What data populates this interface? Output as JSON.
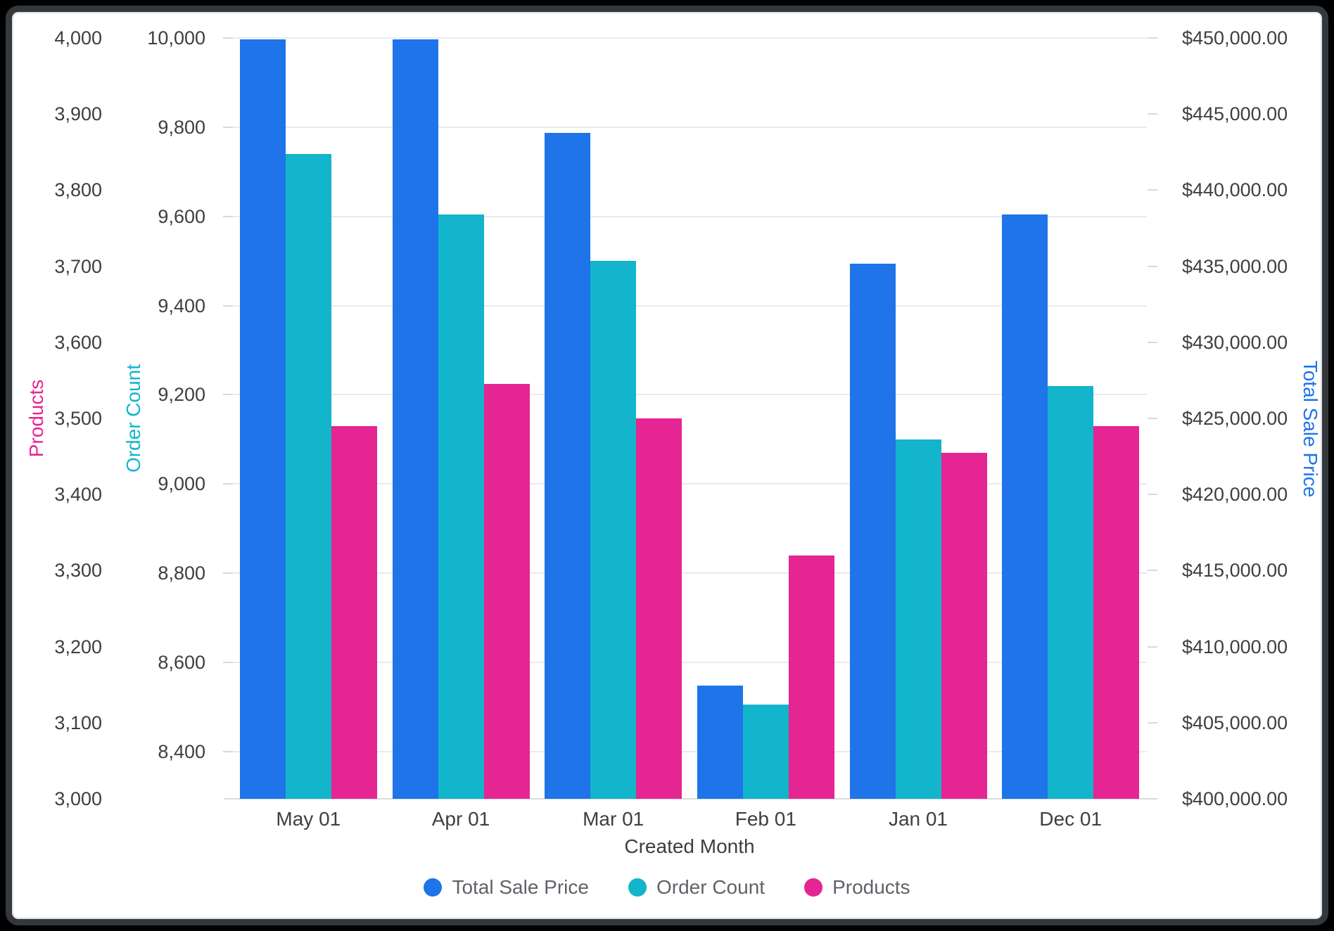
{
  "frame": {
    "background": "#000000",
    "card_border": "#34383c",
    "card_background": "#ffffff"
  },
  "chart_data": {
    "type": "bar",
    "title": "",
    "categories": [
      "May 01",
      "Apr 01",
      "Mar 01",
      "Feb 01",
      "Jan 01",
      "Dec 01"
    ],
    "xlabel": "Created Month",
    "grid": "horizontal gridlines on order-count ticks",
    "legend_position": "bottom",
    "series": [
      {
        "name": "Total Sale Price",
        "axis": "money",
        "color": "#1e74e8",
        "values": [
          449900,
          449900,
          443750,
          407450,
          435150,
          438400
        ]
      },
      {
        "name": "Order Count",
        "axis": "order",
        "color": "#12b5cb",
        "values": [
          9740,
          9605,
          9500,
          8505,
          9100,
          9220
        ]
      },
      {
        "name": "Products",
        "axis": "products",
        "color": "#e52592",
        "values": [
          3490,
          3545,
          3500,
          3320,
          3455,
          3490
        ]
      }
    ],
    "axes": {
      "products": {
        "title": "Products",
        "title_color": "#e52592",
        "side": "outer-left",
        "min": 3000,
        "max": 4000,
        "ticks": [
          {
            "v": 4000,
            "label": "4,000"
          },
          {
            "v": 3900,
            "label": "3,900"
          },
          {
            "v": 3800,
            "label": "3,800"
          },
          {
            "v": 3700,
            "label": "3,700"
          },
          {
            "v": 3600,
            "label": "3,600"
          },
          {
            "v": 3500,
            "label": "3,500"
          },
          {
            "v": 3400,
            "label": "3,400"
          },
          {
            "v": 3300,
            "label": "3,300"
          },
          {
            "v": 3200,
            "label": "3,200"
          },
          {
            "v": 3100,
            "label": "3,100"
          },
          {
            "v": 3000,
            "label": "3,000"
          }
        ]
      },
      "order": {
        "title": "Order Count",
        "title_color": "#12b5cb",
        "side": "inner-left",
        "min": 8294,
        "max": 10000,
        "ticks": [
          {
            "v": 10000,
            "label": "10,000"
          },
          {
            "v": 9800,
            "label": "9,800"
          },
          {
            "v": 9600,
            "label": "9,600"
          },
          {
            "v": 9400,
            "label": "9,400"
          },
          {
            "v": 9200,
            "label": "9,200"
          },
          {
            "v": 9000,
            "label": "9,000"
          },
          {
            "v": 8800,
            "label": "8,800"
          },
          {
            "v": 8600,
            "label": "8,600"
          },
          {
            "v": 8400,
            "label": "8,400"
          }
        ]
      },
      "money": {
        "title": "Total Sale Price",
        "title_color": "#1e74e8",
        "side": "right",
        "min": 400000,
        "max": 450000,
        "ticks": [
          {
            "v": 450000,
            "label": "$450,000.00"
          },
          {
            "v": 445000,
            "label": "$445,000.00"
          },
          {
            "v": 440000,
            "label": "$440,000.00"
          },
          {
            "v": 435000,
            "label": "$435,000.00"
          },
          {
            "v": 430000,
            "label": "$430,000.00"
          },
          {
            "v": 425000,
            "label": "$425,000.00"
          },
          {
            "v": 420000,
            "label": "$420,000.00"
          },
          {
            "v": 415000,
            "label": "$415,000.00"
          },
          {
            "v": 410000,
            "label": "$410,000.00"
          },
          {
            "v": 405000,
            "label": "$405,000.00"
          },
          {
            "v": 400000,
            "label": "$400,000.00"
          }
        ]
      }
    },
    "legend": [
      "Total Sale Price",
      "Order Count",
      "Products"
    ]
  }
}
